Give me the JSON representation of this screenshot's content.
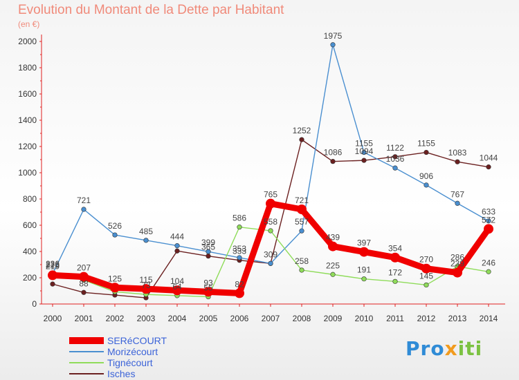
{
  "title": "Evolution du Montant de la Dette par Habitant",
  "unit": "(en €)",
  "logo": {
    "part1": "Pro",
    "part2": "x",
    "part3": "iti"
  },
  "chart_data": {
    "type": "line",
    "x": [
      "2000",
      "2001",
      "2002",
      "2003",
      "2004",
      "2005",
      "2006",
      "2007",
      "2008",
      "2009",
      "2010",
      "2011",
      "2012",
      "2013",
      "2014"
    ],
    "ylim": [
      0,
      2000
    ],
    "yticks": [
      0,
      200,
      400,
      600,
      800,
      1000,
      1200,
      1400,
      1600,
      1800,
      2000
    ],
    "grid": false,
    "legend_position": "bottom-left",
    "series": [
      {
        "name": "Isches",
        "color": "#6b2020",
        "values": [
          152,
          88,
          68,
          47,
          404,
          365,
          333,
          309,
          1252,
          1086,
          1094,
          1122,
          1155,
          1083,
          1044
        ],
        "labels": [
          "",
          "88",
          "",
          "",
          "",
          "365",
          "333",
          "309",
          "1252",
          "1086",
          "1094",
          "1122",
          "1155",
          "1083",
          "1044"
        ]
      },
      {
        "name": "Morizécourt",
        "color": "#4a8fd0",
        "values": [
          228,
          721,
          526,
          485,
          444,
          399,
          353,
          309,
          557,
          1975,
          1155,
          1036,
          906,
          767,
          633
        ],
        "labels": [
          "228",
          "721",
          "526",
          "485",
          "444",
          "399",
          "353",
          "",
          "557",
          "1975",
          "1155",
          "1036",
          "906",
          "767",
          "633"
        ]
      },
      {
        "name": "Tignécourt",
        "color": "#8fdc5a",
        "values": [
          236,
          182,
          93,
          73,
          64,
          55,
          586,
          558,
          258,
          225,
          191,
          172,
          145,
          286,
          246
        ],
        "labels": [
          "236",
          "",
          "",
          "73",
          "64",
          "55",
          "586",
          "558",
          "258",
          "225",
          "191",
          "172",
          "145",
          "286",
          "246"
        ]
      },
      {
        "name": "SERéCOURT",
        "color": "#f00000",
        "values": [
          219,
          207,
          125,
          115,
          104,
          93,
          82,
          765,
          721,
          439,
          397,
          354,
          270,
          239,
          572
        ],
        "labels": [
          "219",
          "207",
          "125",
          "115",
          "104",
          "93",
          "82",
          "765",
          "721",
          "439",
          "397",
          "354",
          "270",
          "239",
          "572"
        ]
      }
    ],
    "legend_order": [
      "SERéCOURT",
      "Morizécourt",
      "Tignécourt",
      "Isches"
    ]
  }
}
